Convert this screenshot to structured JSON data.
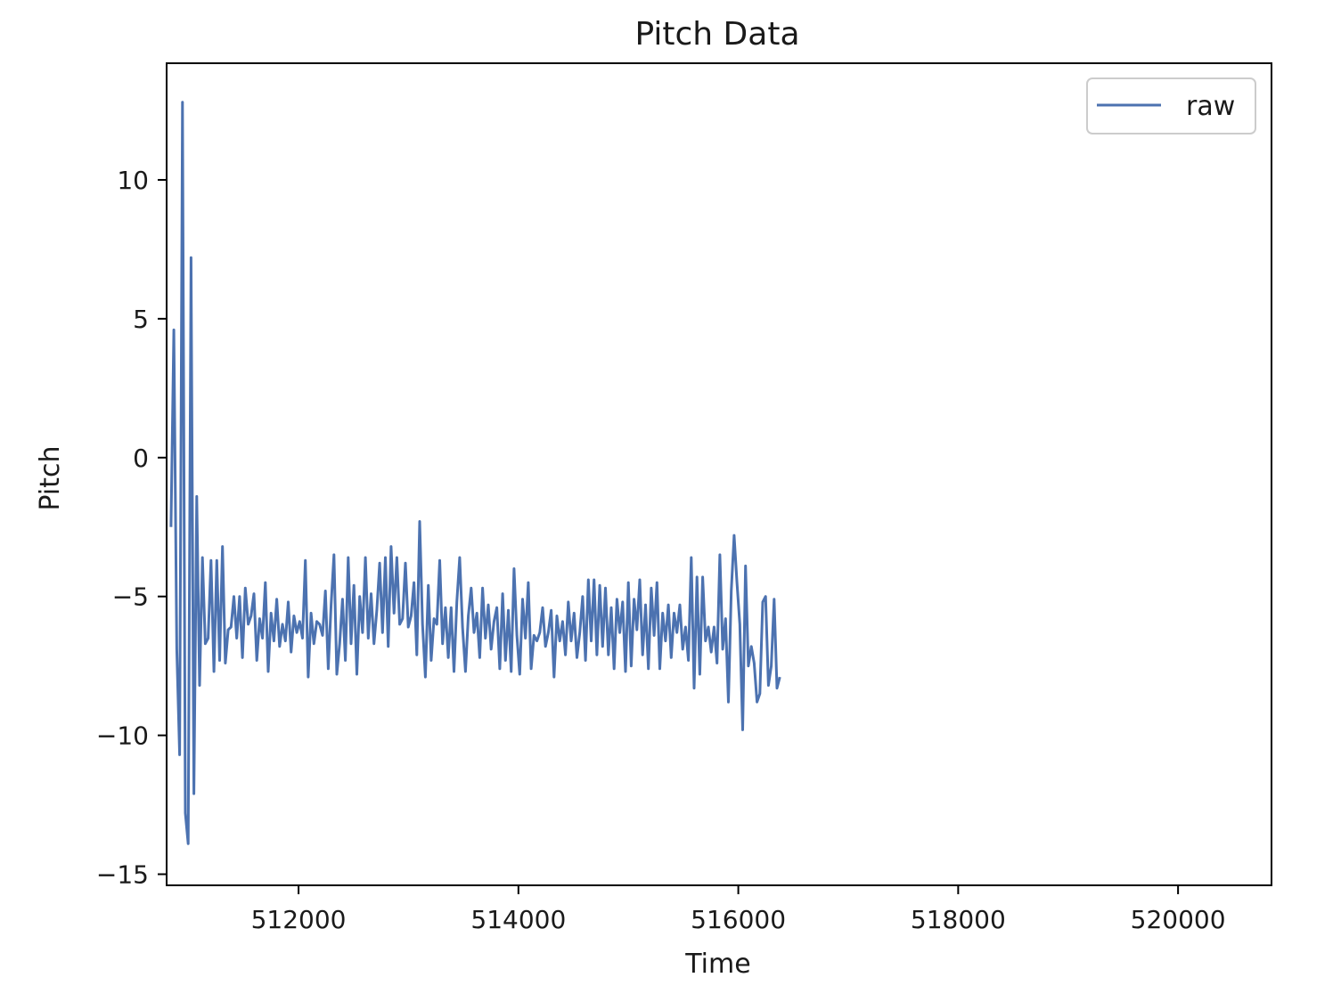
{
  "chart_data": {
    "type": "line",
    "title": "Pitch Data",
    "xlabel": "Time",
    "ylabel": "Pitch",
    "xlim": [
      510800,
      520850
    ],
    "ylim": [
      -15.4,
      14.2
    ],
    "x_ticks": [
      512000,
      514000,
      516000,
      518000,
      520000
    ],
    "x_tick_labels": [
      "512000",
      "514000",
      "516000",
      "518000",
      "520000"
    ],
    "y_ticks": [
      10,
      5,
      0,
      -5,
      -10,
      -15
    ],
    "y_tick_labels": [
      "10",
      "5",
      "0",
      "−5",
      "−10",
      "−15"
    ],
    "grid": false,
    "legend": {
      "position": "upper right"
    },
    "series": [
      {
        "name": "raw",
        "color": "#4c72b0",
        "x_start": 510840,
        "x_step": 26,
        "values": [
          -2.5,
          4.6,
          -6.9,
          -10.7,
          12.8,
          -12.8,
          -13.9,
          7.2,
          -12.1,
          -1.4,
          -8.2,
          -3.6,
          -6.7,
          -6.5,
          -3.7,
          -7.7,
          -3.7,
          -7.3,
          -3.2,
          -7.4,
          -6.2,
          -6.1,
          -5.0,
          -6.5,
          -5.0,
          -7.2,
          -4.7,
          -6.0,
          -5.7,
          -4.9,
          -7.3,
          -5.8,
          -6.5,
          -4.5,
          -7.7,
          -5.6,
          -6.6,
          -5.1,
          -6.8,
          -6.0,
          -6.6,
          -5.2,
          -7.0,
          -5.7,
          -6.3,
          -5.9,
          -6.5,
          -3.7,
          -7.9,
          -5.6,
          -6.7,
          -5.9,
          -6.0,
          -6.4,
          -4.8,
          -7.6,
          -5.3,
          -3.5,
          -7.8,
          -6.7,
          -5.1,
          -7.3,
          -3.6,
          -6.7,
          -4.6,
          -7.8,
          -5.0,
          -6.3,
          -3.6,
          -6.5,
          -4.9,
          -6.7,
          -5.5,
          -3.8,
          -6.3,
          -3.6,
          -6.8,
          -3.2,
          -5.6,
          -3.6,
          -6.0,
          -5.8,
          -3.8,
          -6.1,
          -5.7,
          -4.5,
          -7.1,
          -2.3,
          -6.0,
          -7.9,
          -4.6,
          -7.3,
          -5.8,
          -6.0,
          -3.7,
          -6.7,
          -5.4,
          -7.2,
          -5.4,
          -7.7,
          -5.2,
          -3.6,
          -6.1,
          -7.7,
          -5.7,
          -4.7,
          -6.3,
          -5.6,
          -7.2,
          -4.7,
          -6.5,
          -5.3,
          -6.9,
          -5.9,
          -5.4,
          -7.6,
          -4.9,
          -7.3,
          -5.5,
          -7.7,
          -4.0,
          -6.4,
          -7.8,
          -5.1,
          -6.5,
          -4.5,
          -7.6,
          -6.4,
          -6.6,
          -6.3,
          -5.4,
          -6.8,
          -6.3,
          -5.5,
          -7.9,
          -5.7,
          -6.6,
          -5.9,
          -7.1,
          -5.2,
          -6.6,
          -5.6,
          -7.2,
          -6.3,
          -5.0,
          -7.3,
          -4.4,
          -6.6,
          -4.4,
          -7.1,
          -4.6,
          -6.8,
          -4.7,
          -7.1,
          -5.4,
          -7.6,
          -5.1,
          -6.3,
          -5.2,
          -7.7,
          -4.5,
          -7.5,
          -5.1,
          -6.2,
          -4.4,
          -7.1,
          -5.3,
          -7.6,
          -4.7,
          -6.4,
          -4.5,
          -7.6,
          -5.6,
          -6.6,
          -5.3,
          -7.2,
          -5.6,
          -6.3,
          -5.3,
          -6.9,
          -6.1,
          -7.3,
          -3.6,
          -8.3,
          -4.3,
          -7.8,
          -4.3,
          -6.6,
          -6.1,
          -7.0,
          -6.1,
          -7.4,
          -3.5,
          -6.9,
          -5.8,
          -8.8,
          -4.8,
          -2.8,
          -4.5,
          -6.0,
          -9.8,
          -3.9,
          -7.5,
          -6.8,
          -7.4,
          -8.8,
          -8.5,
          -5.2,
          -5.0,
          -8.2,
          -7.5,
          -5.1,
          -8.3,
          -7.9
        ]
      }
    ]
  }
}
